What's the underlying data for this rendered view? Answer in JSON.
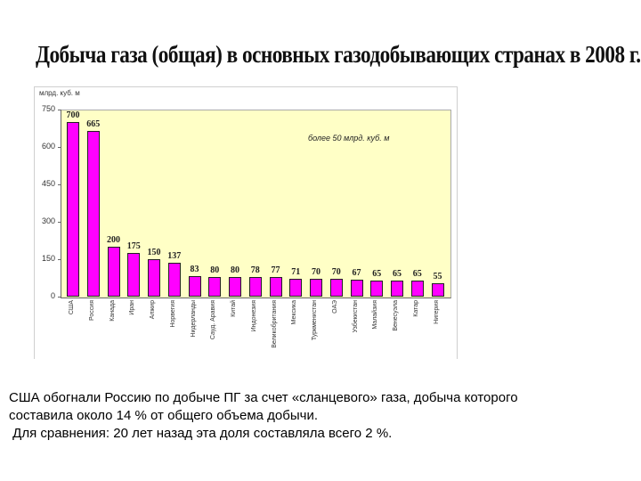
{
  "title": "Добыча газа (общая) в основных газодобывающих странах в 2008 г.",
  "chart_data": {
    "type": "bar",
    "title": "Добыча газа (общая) в основных газодобывающих странах в 2008 г.",
    "ylabel": "млрд. куб. м",
    "xlabel": "",
    "ylim": [
      0,
      750
    ],
    "yticks": [
      0,
      150,
      300,
      450,
      600,
      750
    ],
    "annotation": "более 50 млрд. куб. м",
    "bar_color": "#ff00ff",
    "plot_background": "#ffffc6",
    "grid": false,
    "categories": [
      "США",
      "Россия",
      "Канада",
      "Иран",
      "Алжир",
      "Норвегия",
      "Нидерланды",
      "Сауд. Аравия",
      "Китай",
      "Индонезия",
      "Великобритания",
      "Мексика",
      "Туркменистан",
      "ОАЭ",
      "Узбекистан",
      "Малайзия",
      "Венесуэла",
      "Катар",
      "Нигерия"
    ],
    "values": [
      700,
      665,
      200,
      175,
      150,
      137,
      83,
      80,
      80,
      78,
      77,
      71,
      70,
      70,
      67,
      65,
      65,
      65,
      55
    ]
  },
  "caption": {
    "line1": "США обогнали Россию по добыче ПГ за счет «сланцевого» газа, добыча которого",
    "line2": "составила около 14 % от общего объема добычи.",
    "line3": " Для сравнения: 20 лет назад эта доля составляла всего 2 %."
  }
}
